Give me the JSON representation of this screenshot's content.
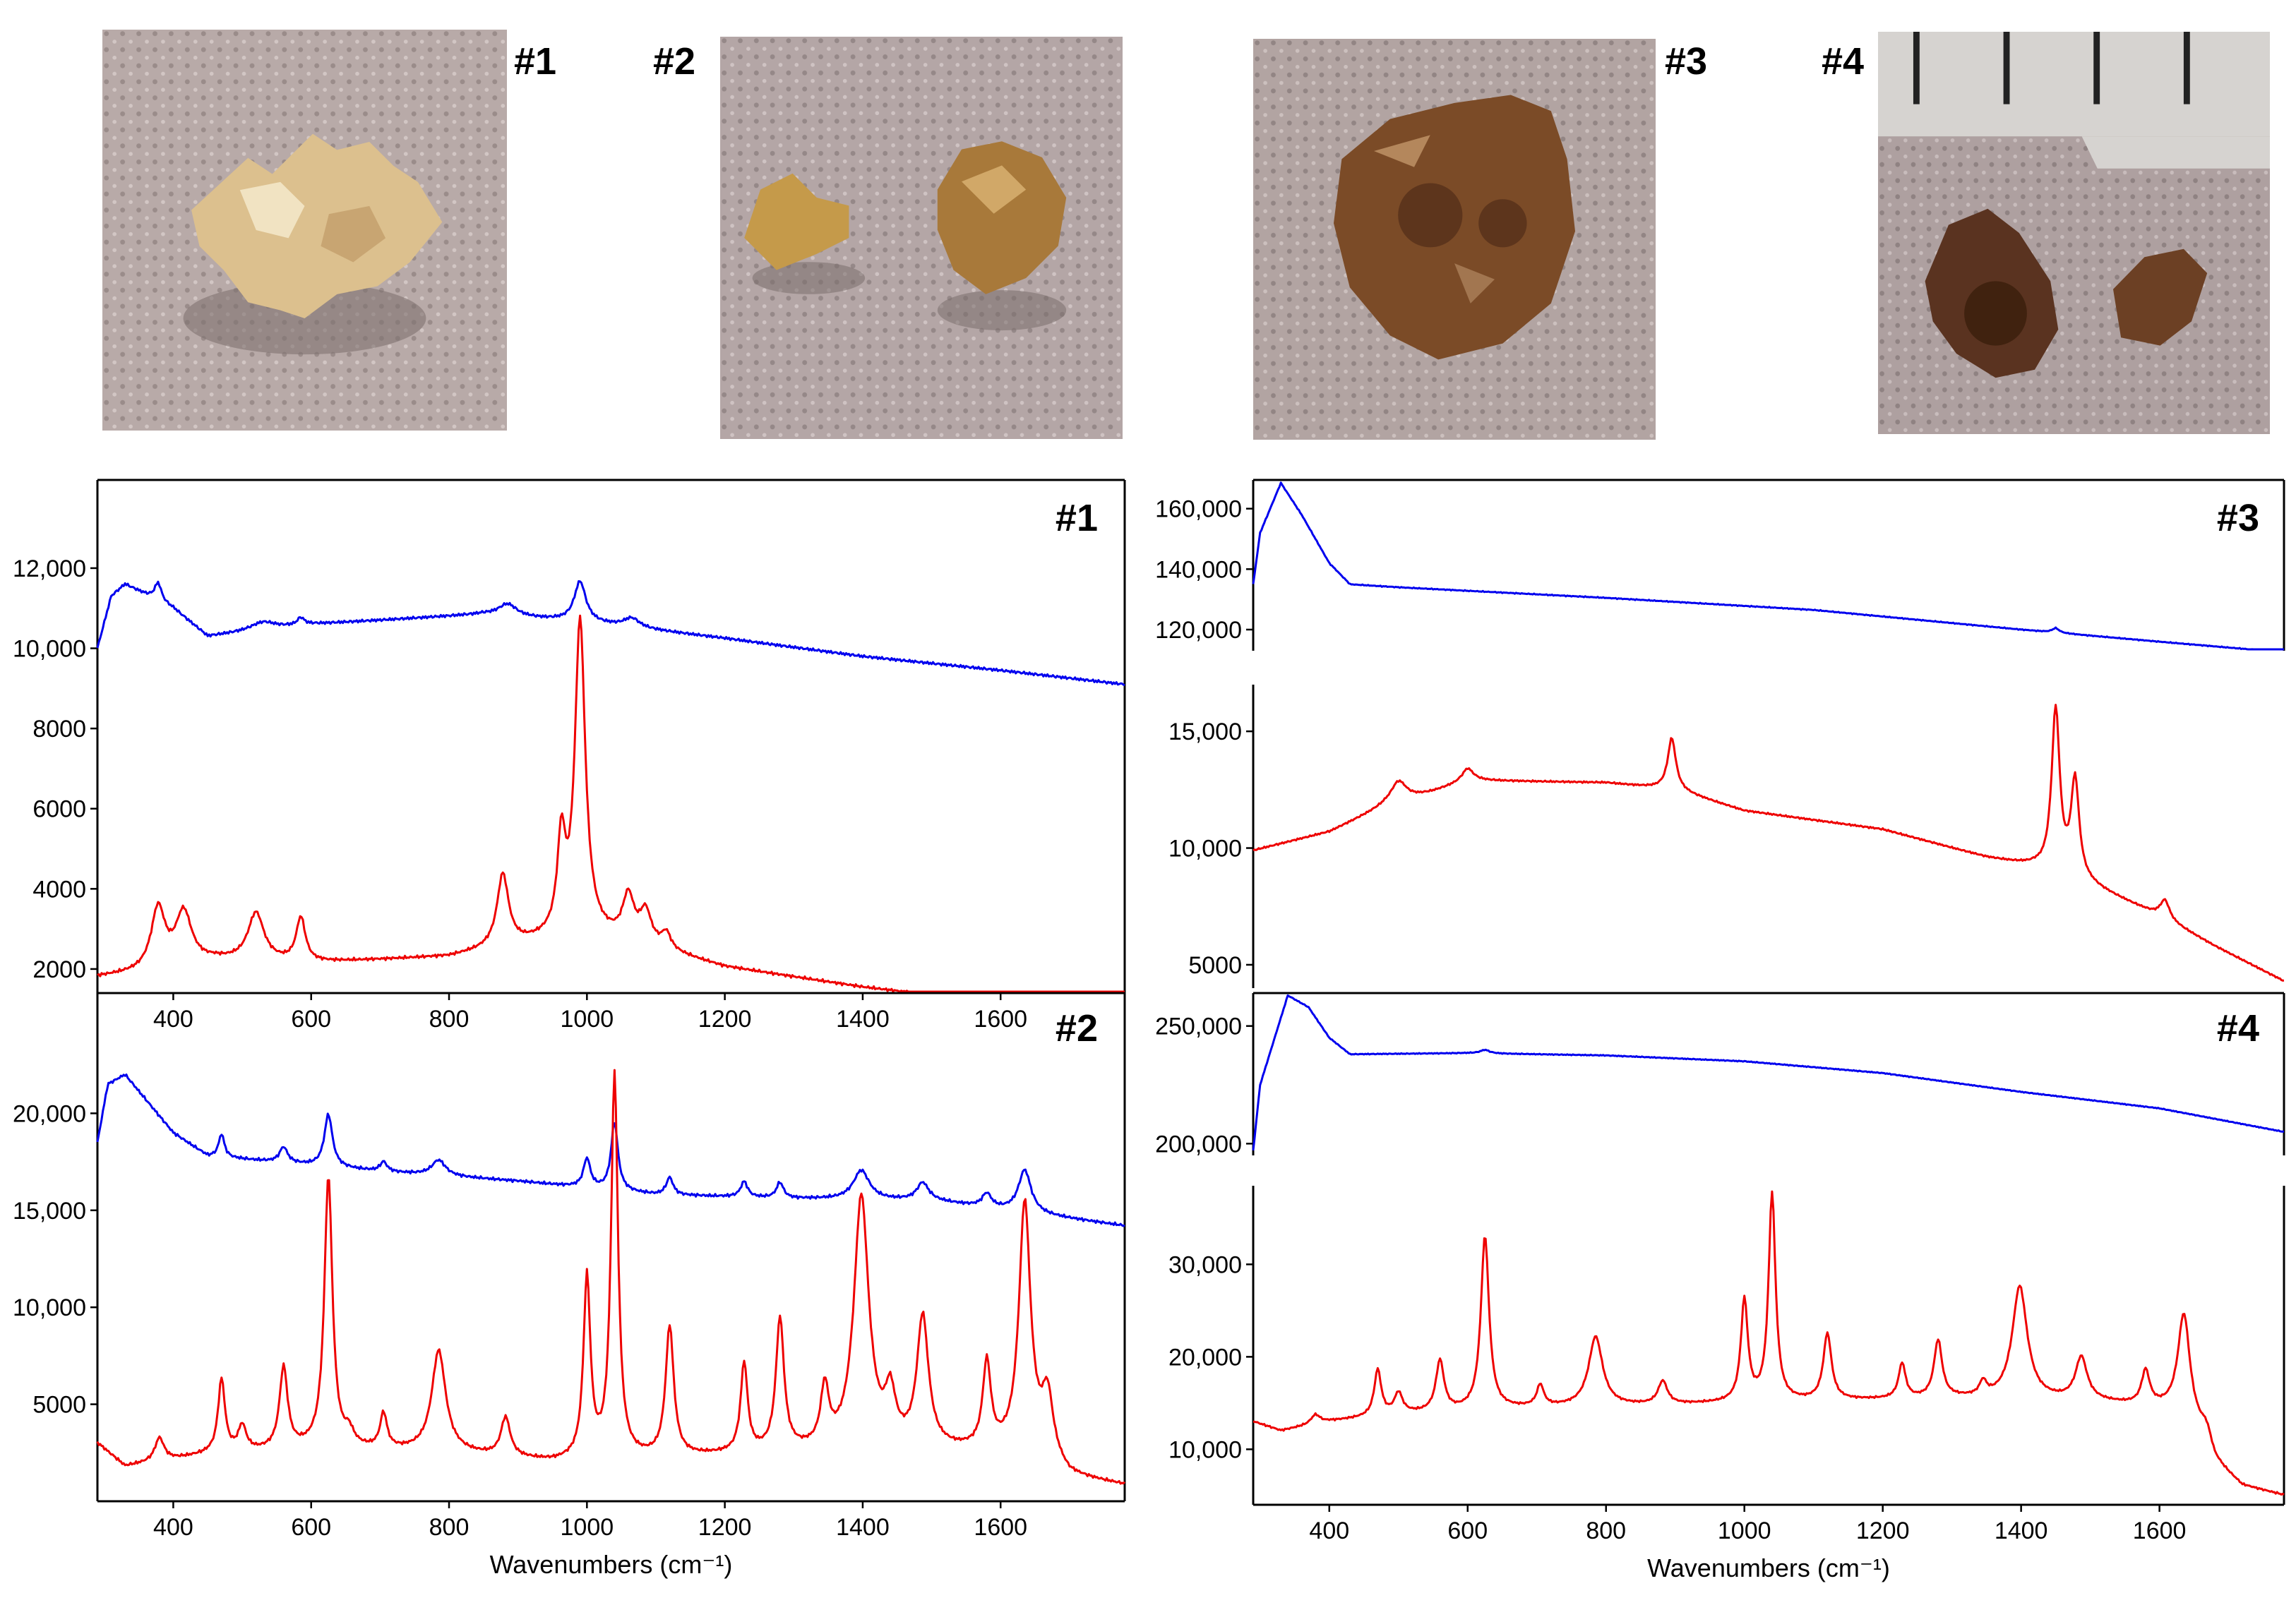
{
  "samples": [
    {
      "label": "#1",
      "color": "#d9b483",
      "shadow": "#8a7a70"
    },
    {
      "label": "#2",
      "color": "#b98a3a",
      "shadow": "#7a6c60"
    },
    {
      "label": "#3",
      "color": "#7a4a26",
      "shadow": "#6e6058"
    },
    {
      "label": "#4",
      "color": "#5a3320",
      "shadow": "#6e6058"
    }
  ],
  "chart_data": [
    {
      "type": "line",
      "panel": "#1",
      "title": "#1",
      "xlabel": "",
      "xlim": [
        290,
        1780
      ],
      "xticks": [
        400,
        600,
        800,
        1000,
        1200,
        1400,
        1600
      ],
      "yticks": [
        {
          "value": 2000,
          "label": "2000"
        },
        {
          "value": 4000,
          "label": "4000"
        },
        {
          "value": 6000,
          "label": "6000"
        },
        {
          "value": 8000,
          "label": "8000"
        },
        {
          "value": 10000,
          "label": "10,000"
        },
        {
          "value": 12000,
          "label": "12,000"
        }
      ],
      "ylim": [
        1400,
        14200
      ],
      "series": [
        {
          "color": "#0000ee",
          "baseline": [
            [
              290,
              10000
            ],
            [
              310,
              11300
            ],
            [
              330,
              11600
            ],
            [
              400,
              11000
            ],
            [
              450,
              10300
            ],
            [
              600,
              10600
            ],
            [
              850,
              10850
            ],
            [
              1000,
              10650
            ],
            [
              1200,
              10250
            ],
            [
              1400,
              9800
            ],
            [
              1600,
              9450
            ],
            [
              1780,
              9100
            ]
          ],
          "peaks": [
            [
              378,
              450,
              6
            ],
            [
              530,
              200,
              22
            ],
            [
              585,
              180,
              6
            ],
            [
              885,
              300,
              16
            ],
            [
              990,
              1000,
              10
            ],
            [
              1065,
              230,
              14
            ]
          ]
        },
        {
          "color": "#ee0000",
          "baseline": [
            [
              290,
              1800
            ],
            [
              350,
              1900
            ],
            [
              460,
              2200
            ],
            [
              600,
              2150
            ],
            [
              800,
              2300
            ],
            [
              900,
              2600
            ],
            [
              1000,
              2850
            ],
            [
              1100,
              2500
            ],
            [
              1200,
              2050
            ],
            [
              1400,
              1550
            ],
            [
              1600,
              1150
            ],
            [
              1700,
              900
            ],
            [
              1780,
              500
            ]
          ],
          "peaks": [
            [
              378,
              1500,
              12
            ],
            [
              415,
              1300,
              14
            ],
            [
              520,
              1200,
              14
            ],
            [
              585,
              1100,
              8
            ],
            [
              878,
              1800,
              10
            ],
            [
              963,
              2300,
              7
            ],
            [
              990,
              7800,
              9
            ],
            [
              1060,
              1100,
              10
            ],
            [
              1085,
              800,
              10
            ],
            [
              1115,
              400,
              8
            ]
          ]
        }
      ]
    },
    {
      "type": "line",
      "panel": "#2",
      "title": "#2",
      "xlabel": "Wavenumbers (cm⁻¹)",
      "xlim": [
        290,
        1780
      ],
      "xticks": [
        400,
        600,
        800,
        1000,
        1200,
        1400,
        1600
      ],
      "yticks": [
        {
          "value": 5000,
          "label": "5000"
        },
        {
          "value": 10000,
          "label": "10,000"
        },
        {
          "value": 15000,
          "label": "15,000"
        },
        {
          "value": 20000,
          "label": "20,000"
        }
      ],
      "ylim": [
        0,
        26200
      ],
      "series": [
        {
          "color": "#0000ee",
          "baseline": [
            [
              290,
              18500
            ],
            [
              305,
              21500
            ],
            [
              330,
              22000
            ],
            [
              400,
              19000
            ],
            [
              450,
              17800
            ],
            [
              700,
              17000
            ],
            [
              900,
              16500
            ],
            [
              1100,
              15800
            ],
            [
              1300,
              15600
            ],
            [
              1500,
              15500
            ],
            [
              1780,
              14200
            ]
          ],
          "peaks": [
            [
              470,
              1200,
              5
            ],
            [
              560,
              800,
              7
            ],
            [
              625,
              2700,
              7
            ],
            [
              705,
              500,
              6
            ],
            [
              785,
              800,
              12
            ],
            [
              1000,
              1500,
              6
            ],
            [
              1040,
              3500,
              6
            ],
            [
              1120,
              900,
              6
            ],
            [
              1228,
              800,
              6
            ],
            [
              1280,
              800,
              6
            ],
            [
              1398,
              1500,
              14
            ],
            [
              1487,
              900,
              10
            ],
            [
              1580,
              700,
              8
            ],
            [
              1635,
              2200,
              11
            ]
          ]
        },
        {
          "color": "#ee0000",
          "baseline": [
            [
              290,
              3000
            ],
            [
              330,
              1800
            ],
            [
              450,
              2400
            ],
            [
              600,
              2700
            ],
            [
              800,
              2500
            ],
            [
              950,
              2000
            ],
            [
              1100,
              2200
            ],
            [
              1300,
              2500
            ],
            [
              1500,
              2600
            ],
            [
              1650,
              2400
            ],
            [
              1700,
              1200
            ],
            [
              1780,
              800
            ]
          ],
          "peaks": [
            [
              380,
              1200,
              8
            ],
            [
              470,
              3800,
              6
            ],
            [
              500,
              1300,
              7
            ],
            [
              560,
              4200,
              7
            ],
            [
              625,
              14000,
              7
            ],
            [
              655,
              700,
              8
            ],
            [
              705,
              1800,
              6
            ],
            [
              785,
              5200,
              12
            ],
            [
              882,
              2000,
              8
            ],
            [
              1000,
              9300,
              6
            ],
            [
              1040,
              19800,
              6
            ],
            [
              1120,
              6700,
              7
            ],
            [
              1228,
              4600,
              6
            ],
            [
              1280,
              6800,
              7
            ],
            [
              1345,
              3000,
              7
            ],
            [
              1398,
              13000,
              13
            ],
            [
              1440,
              2500,
              9
            ],
            [
              1487,
              6700,
              10
            ],
            [
              1580,
              4400,
              7
            ],
            [
              1635,
              12800,
              10
            ],
            [
              1668,
              3200,
              10
            ]
          ]
        }
      ]
    },
    {
      "type": "line",
      "panel": "#3-top",
      "title": "#3",
      "xlabel": "",
      "xlim": [
        290,
        1780
      ],
      "xticks": [],
      "yticks": [
        {
          "value": 120000,
          "label": "120,000"
        },
        {
          "value": 140000,
          "label": "140,000"
        },
        {
          "value": 160000,
          "label": "160,000"
        }
      ],
      "ylim": [
        113000,
        169500
      ],
      "series": [
        {
          "color": "#0000ee",
          "baseline": [
            [
              290,
              135000
            ],
            [
              300,
              152000
            ],
            [
              330,
              168500
            ],
            [
              360,
              158000
            ],
            [
              400,
              142000
            ],
            [
              430,
              135000
            ],
            [
              500,
              134000
            ],
            [
              800,
              130500
            ],
            [
              1100,
              126500
            ],
            [
              1400,
              120000
            ],
            [
              1600,
              116000
            ],
            [
              1780,
              112500
            ]
          ],
          "peaks": [
            [
              1450,
              1500,
              6
            ]
          ]
        }
      ]
    },
    {
      "type": "line",
      "panel": "#3-bottom",
      "title": "",
      "xlabel": "",
      "xlim": [
        290,
        1780
      ],
      "xticks": [],
      "yticks": [
        {
          "value": 5000,
          "label": "5000"
        },
        {
          "value": 10000,
          "label": "10,000"
        },
        {
          "value": 15000,
          "label": "15,000"
        }
      ],
      "ylim": [
        4000,
        17000
      ],
      "series": [
        {
          "color": "#ee0000",
          "baseline": [
            [
              290,
              9900
            ],
            [
              400,
              10700
            ],
            [
              480,
              11800
            ],
            [
              550,
              12400
            ],
            [
              600,
              12900
            ],
            [
              800,
              12800
            ],
            [
              900,
              12500
            ],
            [
              1000,
              11600
            ],
            [
              1200,
              10800
            ],
            [
              1350,
              9600
            ],
            [
              1420,
              9200
            ],
            [
              1500,
              8400
            ],
            [
              1600,
              7100
            ],
            [
              1680,
              5800
            ],
            [
              1780,
              4300
            ]
          ],
          "peaks": [
            [
              500,
              900,
              14
            ],
            [
              600,
              500,
              10
            ],
            [
              895,
              2200,
              7
            ],
            [
              1450,
              7000,
              7
            ],
            [
              1478,
              4200,
              7
            ],
            [
              1608,
              800,
              8
            ]
          ]
        }
      ]
    },
    {
      "type": "line",
      "panel": "#4-top",
      "title": "#4",
      "xlabel": "",
      "xlim": [
        290,
        1780
      ],
      "xticks": [],
      "yticks": [
        {
          "value": 200000,
          "label": "200,000"
        },
        {
          "value": 250000,
          "label": "250,000"
        }
      ],
      "ylim": [
        195000,
        264000
      ],
      "series": [
        {
          "color": "#0000ee",
          "baseline": [
            [
              290,
              197000
            ],
            [
              300,
              225000
            ],
            [
              340,
              263000
            ],
            [
              370,
              258000
            ],
            [
              400,
              245000
            ],
            [
              430,
              238000
            ],
            [
              600,
              238500
            ],
            [
              800,
              237500
            ],
            [
              1000,
              235000
            ],
            [
              1200,
              230000
            ],
            [
              1400,
              222000
            ],
            [
              1600,
              215000
            ],
            [
              1780,
              205000
            ]
          ],
          "peaks": [
            [
              625,
              1500,
              8
            ]
          ]
        }
      ]
    },
    {
      "type": "line",
      "panel": "#4-bottom",
      "title": "",
      "xlabel": "Wavenumbers (cm⁻¹)",
      "xlim": [
        290,
        1780
      ],
      "xticks": [
        400,
        600,
        800,
        1000,
        1200,
        1400,
        1600
      ],
      "yticks": [
        {
          "value": 10000,
          "label": "10,000"
        },
        {
          "value": 20000,
          "label": "20,000"
        },
        {
          "value": 30000,
          "label": "30,000"
        }
      ],
      "ylim": [
        4000,
        38500
      ],
      "series": [
        {
          "color": "#ee0000",
          "baseline": [
            [
              290,
              13000
            ],
            [
              330,
              12000
            ],
            [
              400,
              13000
            ],
            [
              500,
              13800
            ],
            [
              700,
              14500
            ],
            [
              900,
              14800
            ],
            [
              1100,
              15200
            ],
            [
              1300,
              15500
            ],
            [
              1500,
              15200
            ],
            [
              1640,
              14200
            ],
            [
              1680,
              8500
            ],
            [
              1720,
              6000
            ],
            [
              1780,
              5000
            ]
          ],
          "peaks": [
            [
              380,
              1000,
              8
            ],
            [
              470,
              5000,
              6
            ],
            [
              500,
              2200,
              7
            ],
            [
              560,
              5500,
              7
            ],
            [
              625,
              18800,
              7
            ],
            [
              705,
              2300,
              6
            ],
            [
              785,
              7500,
              12
            ],
            [
              882,
              2500,
              8
            ],
            [
              1000,
              11000,
              6
            ],
            [
              1040,
              22500,
              6
            ],
            [
              1120,
              7200,
              7
            ],
            [
              1228,
              3800,
              6
            ],
            [
              1280,
              6200,
              7
            ],
            [
              1345,
              1500,
              6
            ],
            [
              1398,
              12200,
              13
            ],
            [
              1487,
              4600,
              10
            ],
            [
              1580,
              3700,
              7
            ],
            [
              1635,
              10200,
              10
            ],
            [
              1668,
              2000,
              10
            ]
          ]
        }
      ]
    }
  ]
}
